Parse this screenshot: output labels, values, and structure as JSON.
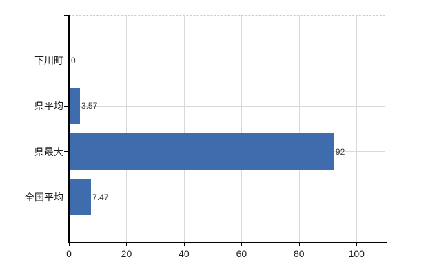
{
  "chart_data": {
    "type": "bar",
    "orientation": "horizontal",
    "title": "",
    "categories": [
      "下川町",
      "県平均",
      "県最大",
      "全国平均"
    ],
    "values": [
      0,
      3.57,
      92,
      7.47
    ],
    "value_labels": [
      "0",
      "3.57",
      "92",
      "7.47"
    ],
    "x_ticks": [
      0,
      20,
      40,
      60,
      80,
      100
    ],
    "x_tick_labels": [
      "0",
      "20",
      "40",
      "60",
      "80",
      "100"
    ],
    "xlim": [
      0,
      110
    ],
    "grid": true,
    "legend": false,
    "bar_color": "#3e6cac",
    "grid_color": "#d9d9d9",
    "axis_color": "#000000",
    "label_color": "#1a1a1a",
    "value_label_color": "#3c3c3c",
    "background_color": "#ffffff"
  }
}
